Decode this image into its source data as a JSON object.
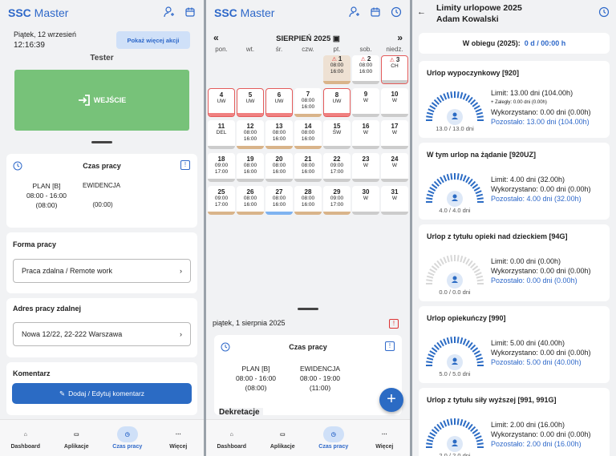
{
  "app": {
    "logo_bold": "SSC",
    "logo_rest": " Master"
  },
  "panel1": {
    "date": "Piątek, 12 wrzesień",
    "time": "12:16:39",
    "more_btn": "Pokaż więcej akcji",
    "user": "Tester",
    "entry_btn": "WEJŚCIE",
    "work_time": {
      "title": "Czas pracy",
      "plan_label": "PLAN [B]",
      "plan_time": "08:00 - 16:00",
      "plan_dur": "(08:00)",
      "ev_label": "EWIDENCJA",
      "ev_dur": "(00:00)"
    },
    "work_form": {
      "title": "Forma pracy",
      "value": "Praca zdalna / Remote work"
    },
    "address": {
      "title": "Adres pracy zdalnej",
      "value": "Nowa 12/22, 22-222 Warszawa"
    },
    "comment": {
      "title": "Komentarz",
      "btn": "Dodaj / Edytuj komentarz"
    }
  },
  "nav": {
    "dashboard": "Dashboard",
    "apps": "Aplikacje",
    "time": "Czas pracy",
    "more": "Więcej"
  },
  "panel2": {
    "month": "SIERPIEŃ 2025",
    "prev": "«",
    "next": "»",
    "dows": [
      "pon.",
      "wt.",
      "śr.",
      "czw.",
      "pt.",
      "sob.",
      "niedz."
    ],
    "selected_date": "piątek, 1 sierpnia 2025",
    "work_time": {
      "title": "Czas pracy",
      "plan_label": "PLAN [B]",
      "plan_time": "08:00 - 16:00",
      "plan_dur": "(08:00)",
      "ev_label": "EWIDENCJA",
      "ev_time": "08:00 - 19:00",
      "ev_dur": "(11:00)"
    },
    "dekretacje": "Dekretacje",
    "fab": "+"
  },
  "calendar": [
    {
      "n": "1",
      "l1": "08:00",
      "l2": "16:00",
      "warn": true,
      "sel": true,
      "bar": "#d9b48a"
    },
    {
      "n": "2",
      "l1": "08:00",
      "l2": "16:00",
      "warn": true,
      "bar": "#ccc"
    },
    {
      "n": "3",
      "l1": "CH",
      "l2": "",
      "warn": true,
      "red": true,
      "bar": "#ccc"
    },
    {
      "n": "4",
      "l1": "UW",
      "l2": "",
      "red": true,
      "bar": "#f08080"
    },
    {
      "n": "5",
      "l1": "UW",
      "l2": "",
      "red": true,
      "bar": "#f08080"
    },
    {
      "n": "6",
      "l1": "UW",
      "l2": "",
      "red": true,
      "bar": "#f08080"
    },
    {
      "n": "7",
      "l1": "08:00",
      "l2": "16:00",
      "bar": "#d9b48a"
    },
    {
      "n": "8",
      "l1": "UW",
      "l2": "",
      "red": true,
      "bar": "#f08080"
    },
    {
      "n": "9",
      "l1": "W",
      "l2": "",
      "bar": "#ccc"
    },
    {
      "n": "10",
      "l1": "W",
      "l2": "",
      "bar": "#ccc"
    },
    {
      "n": "11",
      "l1": "DEL",
      "l2": "",
      "bar": "#ccc"
    },
    {
      "n": "12",
      "l1": "08:00",
      "l2": "16:00",
      "bar": "#d9b48a"
    },
    {
      "n": "13",
      "l1": "08:00",
      "l2": "16:00",
      "bar": "#d9b48a"
    },
    {
      "n": "14",
      "l1": "08:00",
      "l2": "16:00",
      "bar": "#d9b48a"
    },
    {
      "n": "15",
      "l1": "ŚW",
      "l2": "",
      "bar": "#ccc"
    },
    {
      "n": "16",
      "l1": "W",
      "l2": "",
      "bar": "#ccc"
    },
    {
      "n": "17",
      "l1": "W",
      "l2": "",
      "bar": "#ccc"
    },
    {
      "n": "18",
      "l1": "09:00",
      "l2": "17:00",
      "bar": "#ccc"
    },
    {
      "n": "19",
      "l1": "08:00",
      "l2": "16:00",
      "bar": "#ccc"
    },
    {
      "n": "20",
      "l1": "08:00",
      "l2": "16:00",
      "bar": "#ccc"
    },
    {
      "n": "21",
      "l1": "08:00",
      "l2": "16:00",
      "bar": "#ccc"
    },
    {
      "n": "22",
      "l1": "09:00",
      "l2": "17:00",
      "bar": "#ccc"
    },
    {
      "n": "23",
      "l1": "W",
      "l2": "",
      "bar": "#ccc"
    },
    {
      "n": "24",
      "l1": "W",
      "l2": "",
      "bar": "#ccc"
    },
    {
      "n": "25",
      "l1": "09:00",
      "l2": "17:00",
      "bar": "#d9b48a"
    },
    {
      "n": "26",
      "l1": "08:00",
      "l2": "16:00",
      "bar": "#d9b48a"
    },
    {
      "n": "27",
      "l1": "08:00",
      "l2": "16:00",
      "bar": "#7fb3f0"
    },
    {
      "n": "28",
      "l1": "08:00",
      "l2": "16:00",
      "bar": "#d9b48a"
    },
    {
      "n": "29",
      "l1": "09:00",
      "l2": "17:00",
      "bar": "#d9b48a"
    },
    {
      "n": "30",
      "l1": "W",
      "l2": "",
      "bar": "#ccc"
    },
    {
      "n": "31",
      "l1": "W",
      "l2": "",
      "bar": "#ccc"
    }
  ],
  "panel3": {
    "title": "Limity urlopowe 2025",
    "user": "Adam Kowalski",
    "in_circ_label": "W obiegu (2025):",
    "in_circ_value": "0 d / 00:00 h",
    "items": [
      {
        "name": "Urlop wypoczynkowy [920]",
        "limit": "Limit: 13.00 dni (104.00h)",
        "extra": "+ Zaległy: 0.00 dni (0.00h)",
        "used": "Wykorzystano: 0.00 dni (0.00h)",
        "left": "Pozostało: 13.00 dni (104.00h)",
        "gauge": "13.0 / 13.0 dni",
        "fill": 1
      },
      {
        "name": "W tym urlop na żądanie [920UZ]",
        "limit": "Limit: 4.00 dni (32.00h)",
        "extra": "",
        "used": "Wykorzystano: 0.00 dni (0.00h)",
        "left": "Pozostało: 4.00 dni (32.00h)",
        "gauge": "4.0 / 4.0 dni",
        "fill": 1
      },
      {
        "name": "Urlop z tytułu opieki nad dzieckiem [94G]",
        "limit": "Limit: 0.00 dni (0.00h)",
        "extra": "",
        "used": "Wykorzystano: 0.00 dni (0.00h)",
        "left": "Pozostało: 0.00 dni (0.00h)",
        "gauge": "0.0 / 0.0 dni",
        "fill": 0
      },
      {
        "name": "Urlop opiekuńczy [990]",
        "limit": "Limit: 5.00 dni (40.00h)",
        "extra": "",
        "used": "Wykorzystano: 0.00 dni (0.00h)",
        "left": "Pozostało: 5.00 dni (40.00h)",
        "gauge": "5.0 / 5.0 dni",
        "fill": 1
      },
      {
        "name": "Urlop z tytułu siły wyższej [991, 991G]",
        "limit": "Limit: 2.00 dni (16.00h)",
        "extra": "",
        "used": "Wykorzystano: 0.00 dni (0.00h)",
        "left": "Pozostało: 2.00 dni (16.00h)",
        "gauge": "2.0 / 2.0 dni",
        "fill": 1
      }
    ]
  }
}
